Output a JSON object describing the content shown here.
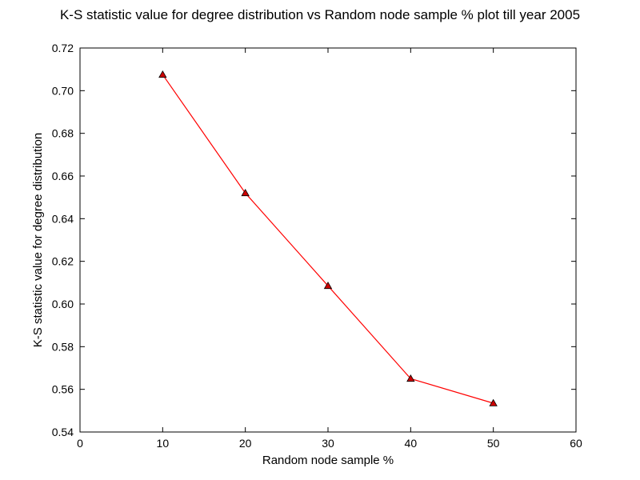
{
  "chart_data": {
    "type": "line",
    "title": "K-S statistic value for degree distribution vs Random node sample % plot till year 2005",
    "xlabel": "Random node sample %",
    "ylabel": "K-S statistic value for degree distribution",
    "x": [
      10,
      20,
      30,
      40,
      50
    ],
    "series": [
      {
        "values": [
          0.7075,
          0.652,
          0.6085,
          0.565,
          0.5535
        ],
        "line_color": "#ff0000",
        "marker": "triangle-up",
        "marker_color": "#cc0000"
      }
    ],
    "xlim": [
      0,
      60
    ],
    "ylim": [
      0.54,
      0.72
    ],
    "xticks": [
      0,
      10,
      20,
      30,
      40,
      50,
      60
    ],
    "yticks": [
      0.54,
      0.56,
      0.58,
      0.6,
      0.62,
      0.64,
      0.66,
      0.68,
      0.7,
      0.72
    ],
    "xtick_labels": [
      "0",
      "10",
      "20",
      "30",
      "40",
      "50",
      "60"
    ],
    "ytick_labels": [
      "0.54",
      "0.56",
      "0.58",
      "0.60",
      "0.62",
      "0.64",
      "0.66",
      "0.68",
      "0.70",
      "0.72"
    ],
    "grid": false,
    "legend": "none"
  }
}
